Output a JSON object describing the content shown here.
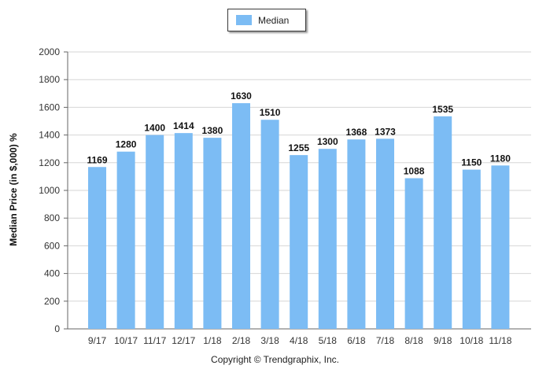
{
  "chart_data": {
    "type": "bar",
    "categories": [
      "9/17",
      "10/17",
      "11/17",
      "12/17",
      "1/18",
      "2/18",
      "3/18",
      "4/18",
      "5/18",
      "6/18",
      "7/18",
      "8/18",
      "9/18",
      "10/18",
      "11/18"
    ],
    "series": [
      {
        "name": "Median",
        "values": [
          1169,
          1280,
          1400,
          1414,
          1380,
          1630,
          1510,
          1255,
          1300,
          1368,
          1373,
          1088,
          1535,
          1150,
          1180
        ]
      }
    ],
    "data_labels": [
      "1169",
      "1280",
      "1400",
      "1414",
      "1380",
      "1630",
      "1510",
      "1255",
      "1300",
      "1368",
      "1373",
      "1088",
      "1535",
      "1150",
      "1180"
    ],
    "ylabel": "Median Price (in $,000) %",
    "xlabel": "",
    "ylim": [
      0,
      2000
    ],
    "yticks": [
      "0",
      "200",
      "400",
      "600",
      "800",
      "1000",
      "1200",
      "1400",
      "1600",
      "1800",
      "2000"
    ],
    "ytick_values": [
      0,
      200,
      400,
      600,
      800,
      1000,
      1200,
      1400,
      1600,
      1800,
      2000
    ],
    "grid": "horizontal",
    "legend_position": "top-center",
    "bar_color": "#7cbcf4"
  },
  "footer": {
    "copyright": "Copyright © Trendgraphix, Inc."
  }
}
